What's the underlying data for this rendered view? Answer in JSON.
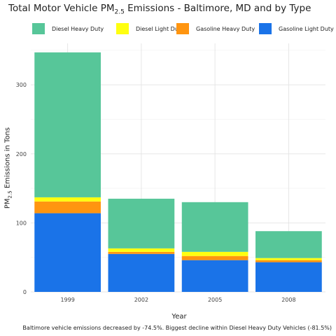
{
  "chart_data": {
    "type": "bar",
    "stacked": true,
    "title": {
      "prefix": "Total Motor Vehicle PM",
      "sub": "2.5",
      "suffix": " Emissions - Baltimore, MD and by Type"
    },
    "xlabel": "Year",
    "ylabel": {
      "prefix": "PM",
      "sub": "2.5",
      "suffix": " Emissions in Tons"
    },
    "caption": "Baltimore vehicle emissions decreased by -74.5%. Biggest decline within Diesel Heavy Duty Vehicles (-81.5%)",
    "categories": [
      "1999",
      "2002",
      "2005",
      "2008"
    ],
    "yticks": [
      "0",
      "100",
      "200",
      "300"
    ],
    "ylim": [
      0,
      360
    ],
    "grid": true,
    "legend_position": "top",
    "series": [
      {
        "name": "Gasoline Light Duty",
        "color": "#1a73e8",
        "values": [
          114,
          55,
          46,
          43
        ]
      },
      {
        "name": "Gasoline Heavy Duty",
        "color": "#ff9510",
        "values": [
          17,
          3,
          6,
          3
        ]
      },
      {
        "name": "Diesel Light Duty",
        "color": "#ffff10",
        "values": [
          6,
          5,
          6,
          3
        ]
      },
      {
        "name": "Diesel Heavy Duty",
        "color": "#57c699",
        "values": [
          210,
          72,
          72,
          39
        ]
      }
    ],
    "legend_order": [
      "Diesel Heavy Duty",
      "Diesel Light Duty",
      "Gasoline Heavy Duty",
      "Gasoline Light Duty"
    ]
  }
}
